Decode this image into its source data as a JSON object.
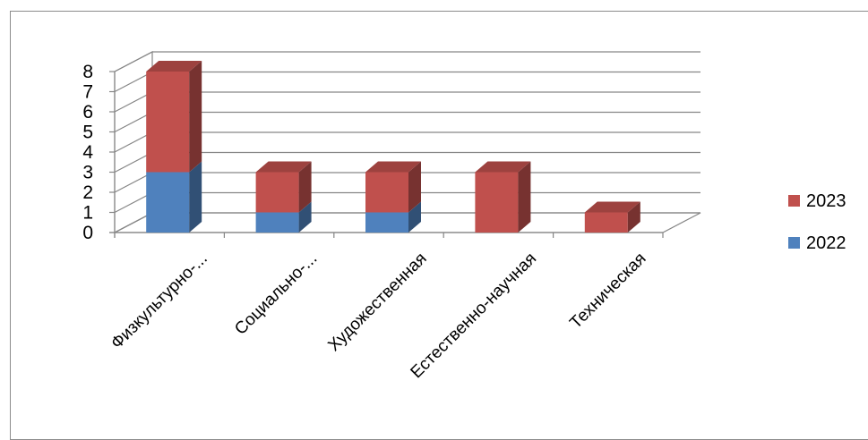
{
  "chart_data": {
    "type": "bar",
    "stacked": true,
    "view": "3d",
    "categories": [
      "Физкультурно-...",
      "Социально-...",
      "Художественная",
      "Естественно-научная",
      "Техническая"
    ],
    "series": [
      {
        "name": "2022",
        "color": "#4f81bd",
        "values": [
          3,
          1,
          1,
          0,
          0
        ]
      },
      {
        "name": "2023",
        "color": "#c0504d",
        "values": [
          5,
          2,
          2,
          3,
          1
        ]
      }
    ],
    "y_ticks": [
      "0",
      "1",
      "2",
      "3",
      "4",
      "5",
      "6",
      "7",
      "8"
    ],
    "ylim": [
      0,
      8
    ],
    "grid": true,
    "legend_position": "right",
    "legend_order": [
      "2023",
      "2022"
    ]
  }
}
